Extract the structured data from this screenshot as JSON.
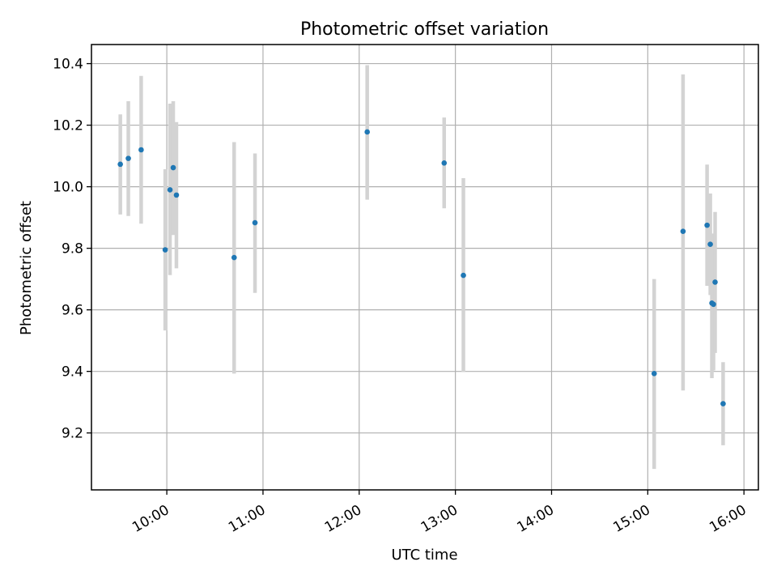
{
  "chart_data": {
    "type": "scatter",
    "title": "Photometric offset variation",
    "xlabel": "UTC time",
    "ylabel": "Photometric offset",
    "x_axis": "time",
    "xlim": [
      "09:13",
      "16:09"
    ],
    "ylim": [
      9.015,
      10.462
    ],
    "x_ticks": [
      "10:00",
      "11:00",
      "12:00",
      "13:00",
      "14:00",
      "15:00",
      "16:00"
    ],
    "y_ticks": [
      "9.2",
      "9.4",
      "9.6",
      "9.8",
      "10.0",
      "10.2",
      "10.4"
    ],
    "grid": true,
    "legend": "none",
    "marker_color": "#1f77b4",
    "errorbar_color": "#d3d3d3",
    "series": [
      {
        "points": [
          {
            "x": "09:31",
            "y": 10.073,
            "ylow": 9.91,
            "yhigh": 10.235
          },
          {
            "x": "09:36",
            "y": 10.092,
            "ylow": 9.905,
            "yhigh": 10.278
          },
          {
            "x": "09:44",
            "y": 10.12,
            "ylow": 9.88,
            "yhigh": 10.36
          },
          {
            "x": "09:59",
            "y": 9.795,
            "ylow": 9.533,
            "yhigh": 10.057
          },
          {
            "x": "10:02",
            "y": 9.99,
            "ylow": 9.713,
            "yhigh": 10.27
          },
          {
            "x": "10:04",
            "y": 10.062,
            "ylow": 9.843,
            "yhigh": 10.278
          },
          {
            "x": "10:06",
            "y": 9.973,
            "ylow": 9.735,
            "yhigh": 10.21
          },
          {
            "x": "10:42",
            "y": 9.77,
            "ylow": 9.393,
            "yhigh": 10.145
          },
          {
            "x": "10:55",
            "y": 9.883,
            "ylow": 9.655,
            "yhigh": 10.108
          },
          {
            "x": "12:05",
            "y": 10.178,
            "ylow": 9.958,
            "yhigh": 10.395
          },
          {
            "x": "12:53",
            "y": 10.077,
            "ylow": 9.93,
            "yhigh": 10.225
          },
          {
            "x": "13:05",
            "y": 9.712,
            "ylow": 9.398,
            "yhigh": 10.028
          },
          {
            "x": "15:04",
            "y": 9.393,
            "ylow": 9.083,
            "yhigh": 9.7
          },
          {
            "x": "15:22",
            "y": 9.855,
            "ylow": 9.338,
            "yhigh": 10.365
          },
          {
            "x": "15:37",
            "y": 9.875,
            "ylow": 9.678,
            "yhigh": 10.072
          },
          {
            "x": "15:39",
            "y": 9.813,
            "ylow": 9.648,
            "yhigh": 9.978
          },
          {
            "x": "15:40",
            "y": 9.622,
            "ylow": 9.378,
            "yhigh": 9.848
          },
          {
            "x": "15:41",
            "y": 9.618,
            "ylow": 9.403,
            "yhigh": 9.845
          },
          {
            "x": "15:42",
            "y": 9.69,
            "ylow": 9.46,
            "yhigh": 9.918
          },
          {
            "x": "15:47",
            "y": 9.295,
            "ylow": 9.16,
            "yhigh": 9.43
          }
        ]
      }
    ]
  }
}
